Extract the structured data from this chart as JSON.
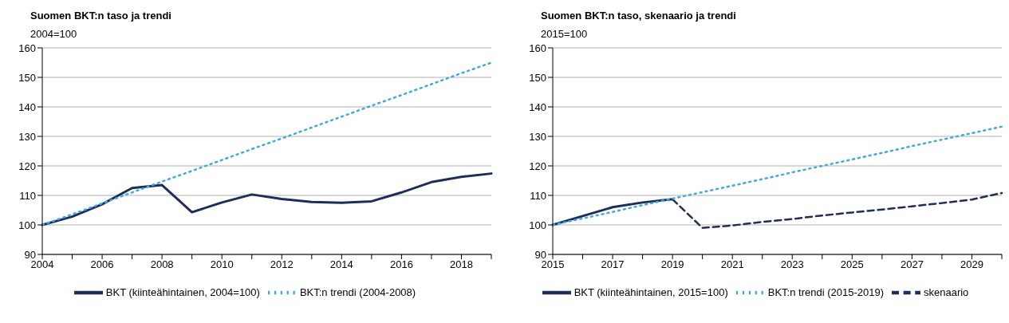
{
  "chart_data": [
    {
      "type": "line",
      "title": "Suomen BKT:n taso ja trendi",
      "subtitle": "2004=100",
      "categories": [
        "2004",
        null,
        "2006",
        null,
        "2008",
        null,
        "2010",
        null,
        "2012",
        null,
        "2014",
        null,
        "2016",
        null,
        "2018",
        null
      ],
      "series": [
        {
          "name": "BKT (kiinteähintainen, 2004=100)",
          "color": "#1f2d5a",
          "line_style": "solid",
          "values": [
            100,
            102.8,
            107,
            112.5,
            113.5,
            104.3,
            107.6,
            110.3,
            108.8,
            107.8,
            107.5,
            108,
            111,
            114.5,
            116.3,
            117.4
          ]
        },
        {
          "name": "BKT:n trendi (2004-2008)",
          "color": "#3fa9e6",
          "line_style": "dotted",
          "values": [
            100,
            103.6,
            107.3,
            111,
            114.7,
            118.3,
            122,
            125.7,
            129.3,
            133,
            136.7,
            140.4,
            144,
            147.7,
            151.4,
            155
          ]
        }
      ],
      "ylim": [
        90,
        160
      ],
      "yticks": [
        90,
        100,
        110,
        120,
        130,
        140,
        150,
        160
      ],
      "grid": "y",
      "legend": "bottom",
      "marker": "none"
    },
    {
      "type": "line",
      "title": "Suomen BKT:n taso, skenaario ja trendi",
      "subtitle": "2015=100",
      "categories": [
        "2015",
        null,
        "2017",
        null,
        "2019",
        null,
        "2021",
        null,
        "2023",
        null,
        "2025",
        null,
        "2027",
        null,
        "2029",
        null
      ],
      "series": [
        {
          "name": "BKT (kiinteähintainen, 2015=100)",
          "color": "#1f2d5a",
          "line_style": "solid",
          "values": [
            100,
            103,
            106,
            107.6,
            108.7,
            null,
            null,
            null,
            null,
            null,
            null,
            null,
            null,
            null,
            null,
            null
          ]
        },
        {
          "name": "skenaario",
          "color": "#1f2d5a",
          "line_style": "dashed",
          "values": [
            null,
            null,
            null,
            null,
            108.7,
            99,
            99.8,
            101,
            102,
            103.2,
            104.2,
            105.2,
            106.3,
            107.4,
            108.6,
            110.8
          ]
        },
        {
          "name": "BKT:n trendi (2015-2019)",
          "color": "#3fa9e6",
          "line_style": "dotted",
          "values": [
            100,
            102.2,
            104.4,
            106.7,
            108.9,
            111.1,
            113.3,
            115.5,
            117.8,
            120,
            122.2,
            124.4,
            126.7,
            128.9,
            131.1,
            133.3
          ]
        }
      ],
      "ylim": [
        90,
        160
      ],
      "yticks": [
        90,
        100,
        110,
        120,
        130,
        140,
        150,
        160
      ],
      "grid": "y",
      "legend": "bottom",
      "marker": "none"
    }
  ]
}
